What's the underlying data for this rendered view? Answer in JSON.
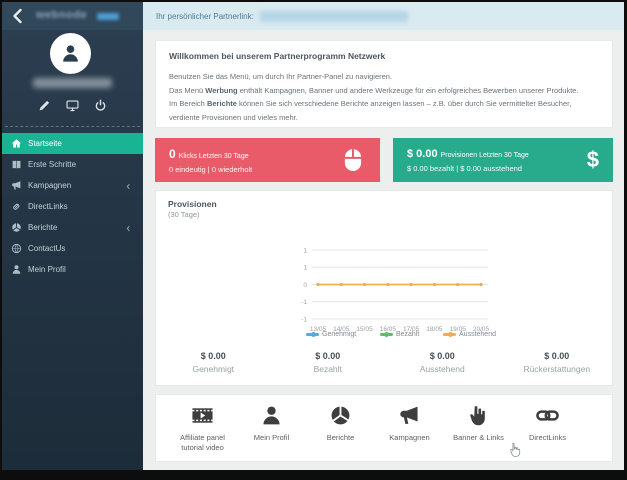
{
  "topbar": {
    "label": "Ihr persönlicher Partnerlink:"
  },
  "sidebar": {
    "logo": "webnode",
    "menu": [
      {
        "label": "Startseite",
        "icon": "home",
        "active": true,
        "chevron": false
      },
      {
        "label": "Erste Schritte",
        "icon": "book",
        "active": false,
        "chevron": false
      },
      {
        "label": "Kampagnen",
        "icon": "megaphone",
        "active": false,
        "chevron": true
      },
      {
        "label": "DirectLinks",
        "icon": "link",
        "active": false,
        "chevron": false
      },
      {
        "label": "Berichte",
        "icon": "pie",
        "active": false,
        "chevron": true
      },
      {
        "label": "ContactUs",
        "icon": "globe",
        "active": false,
        "chevron": false
      },
      {
        "label": "Mein Profil",
        "icon": "user",
        "active": false,
        "chevron": false
      }
    ]
  },
  "welcome": {
    "title": "Willkommen bei unserem Partnerprogramm Netzwerk",
    "line1": "Benutzen Sie das Menü, um durch Ihr Partner-Panel zu navigieren.",
    "line2_pre": "Das Menü ",
    "line2_bold": "Werbung",
    "line2_post": " enthält Kampagnen, Banner und andere Werkzeuge für ein erfolgreiches Bewerben unserer Produkte.",
    "line3_pre": "Im Bereich ",
    "line3_bold": "Berichte",
    "line3_post": " können Sie sich verschiedene Berichte anzeigen lassen – z.B. über durch Sie vermittelter Besucher, verdiente Provisionen und vieles mehr."
  },
  "stats": {
    "clicks": {
      "value": "0",
      "label": "Klicks Letzten 30 Tage",
      "sub": "0 eindeutig | 0 wiederholt",
      "color": "#e95b68"
    },
    "commissions": {
      "value": "$ 0.00",
      "label": "Provisionen Letzten 30 Tage",
      "sub": "$ 0.00 bezahlt | $ 0.00 ausstehend",
      "color": "#28ab8d",
      "icon_text": "$"
    }
  },
  "chart_card": {
    "title": "Provisionen",
    "subtitle": "(30 Tage)",
    "totals": [
      {
        "value": "$ 0.00",
        "label": "Genehmigt"
      },
      {
        "value": "$ 0.00",
        "label": "Bezahlt"
      },
      {
        "value": "$ 0.00",
        "label": "Ausstehend"
      },
      {
        "value": "$ 0.00",
        "label": "Rückerstattungen"
      }
    ]
  },
  "chart_data": {
    "type": "line",
    "x": [
      "13/05",
      "14/05",
      "15/05",
      "16/05",
      "17/05",
      "18/05",
      "19/05",
      "20/05"
    ],
    "series": [
      {
        "name": "Genehmigt",
        "color": "#5aa9d6",
        "values": [
          0,
          0,
          0,
          0,
          0,
          0,
          0,
          0
        ]
      },
      {
        "name": "Bezahlt",
        "color": "#66bb6a",
        "values": [
          0,
          0,
          0,
          0,
          0,
          0,
          0,
          0
        ]
      },
      {
        "name": "Ausstehend",
        "color": "#f3ac51",
        "values": [
          0,
          0,
          0,
          0,
          0,
          0,
          0,
          0
        ]
      }
    ],
    "ylim": [
      -1,
      1
    ],
    "ytick_labels": [
      "1",
      "1",
      "0",
      "-1",
      "-1"
    ],
    "grid": true,
    "legend_position": "bottom"
  },
  "shortcuts": [
    {
      "label": "Affiliate panel tutorial video",
      "icon": "film"
    },
    {
      "label": "Mein Profil",
      "icon": "user"
    },
    {
      "label": "Berichte",
      "icon": "pie"
    },
    {
      "label": "Kampagnen",
      "icon": "megaphone"
    },
    {
      "label": "Banner & Links",
      "icon": "pointer"
    },
    {
      "label": "DirectLinks",
      "icon": "chain"
    }
  ],
  "colors": {
    "accent_green": "#1ab394",
    "danger_red": "#e95b68",
    "success_green": "#28ab8d",
    "sidebar_bg": "#243545",
    "topbar_bg": "#d9eaf1",
    "chart_orange": "#f3ac51"
  }
}
